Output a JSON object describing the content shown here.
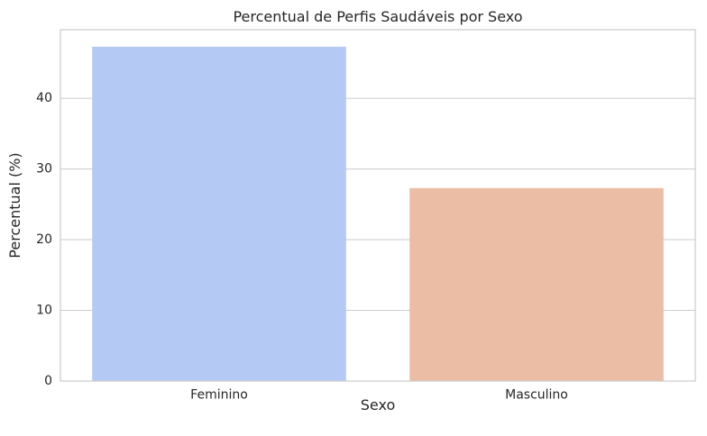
{
  "chart_data": {
    "type": "bar",
    "title": "Percentual de Perfis Saudáveis por Sexo",
    "xlabel": "Sexo",
    "ylabel": "Percentual (%)",
    "categories": [
      "Feminino",
      "Masculino"
    ],
    "values": [
      47.3,
      27.3
    ],
    "colors": [
      "#b5c9f5",
      "#ecbda5"
    ],
    "ylim": [
      0,
      49.7
    ],
    "yticks": [
      0,
      10,
      20,
      30,
      40
    ],
    "grid": "y",
    "legend": "none"
  }
}
